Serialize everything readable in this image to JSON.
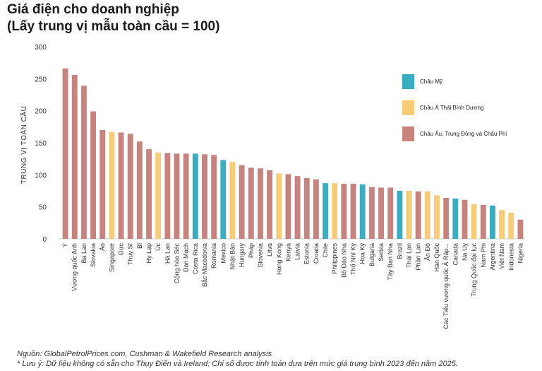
{
  "title_line1": "Giá điện cho doanh nghiệp",
  "title_line2": "(Lấy trung vị mẫu toàn cầu = 100)",
  "source": "Nguồn: GlobalPetrolPrices.com, Cushman & Wakefield Research analysis",
  "note": "* Lưu ý: Dữ liệu không có sẵn cho Thụy Điển và Ireland; Chỉ số được tính toán dựa trên mức giá trung bình 2023 đến năm 2025.",
  "colors": {
    "americas": "#3aaec0",
    "apac": "#f7cc78",
    "emea": "#c7847f",
    "axis": "#cccccc",
    "text": "#333333"
  },
  "chart_data": {
    "type": "bar",
    "ylabel": "TRUNG VỊ TOÀN CẦU",
    "ylim": [
      0,
      300
    ],
    "yticks": [
      0,
      50,
      100,
      150,
      200,
      250,
      300
    ],
    "grid": false,
    "legend_position": "right",
    "legend": [
      {
        "key": "americas",
        "label": "Châu Mỹ"
      },
      {
        "key": "apac",
        "label": "Châu Á Thái Bình Dương"
      },
      {
        "key": "emea",
        "label": "Châu Âu, Trung Đông và Châu Phi"
      }
    ],
    "categories": [
      "Ý",
      "Vương quốc Anh",
      "Ba Lan",
      "Slovakia",
      "Áo",
      "Singapore",
      "Đức",
      "Thụy Sĩ",
      "Bỉ",
      "Hy Lạp",
      "Úc",
      "Hà Lan",
      "Cộng hòa Séc",
      "Đan Mạch",
      "Costa Rica",
      "Bắc Macedonia",
      "Romania",
      "Mexico",
      "Nhật Bản",
      "Hungary",
      "Pháp",
      "Slovenia",
      "Litva",
      "Hong Kong",
      "Kenya",
      "Latvia",
      "Estonia",
      "Croatia",
      "Chile",
      "Philippines",
      "Bồ Đào Nha",
      "Thổ Nhĩ Kỳ",
      "Hoa Kỳ",
      "Bulgaria",
      "Serbia",
      "Tây Ban Nha",
      "Brazil",
      "Thái Lan",
      "Phần Lan",
      "Ấn Độ",
      "Hàn Quốc",
      "Các Tiểu vương quốc Ả Rập...",
      "Canada",
      "Na Uy",
      "Trung Quốc đại lục",
      "Nam Phi",
      "Argentina",
      "Việt Nam",
      "Indonesia",
      "Nigeria"
    ],
    "values": [
      266,
      256,
      239,
      199,
      170,
      167,
      166,
      164,
      152,
      140,
      135,
      134,
      133,
      133,
      133,
      132,
      131,
      123,
      120,
      115,
      111,
      110,
      107,
      102,
      101,
      98,
      95,
      93,
      87,
      87,
      86,
      86,
      85,
      81,
      80,
      80,
      75,
      75,
      74,
      74,
      68,
      64,
      63,
      61,
      54,
      53,
      52,
      45,
      41,
      30
    ],
    "regions": [
      "emea",
      "emea",
      "emea",
      "emea",
      "emea",
      "apac",
      "emea",
      "emea",
      "emea",
      "emea",
      "apac",
      "emea",
      "emea",
      "emea",
      "americas",
      "emea",
      "emea",
      "americas",
      "apac",
      "emea",
      "emea",
      "emea",
      "emea",
      "apac",
      "emea",
      "emea",
      "emea",
      "emea",
      "americas",
      "apac",
      "emea",
      "emea",
      "americas",
      "emea",
      "emea",
      "emea",
      "americas",
      "apac",
      "emea",
      "apac",
      "apac",
      "emea",
      "americas",
      "emea",
      "apac",
      "emea",
      "americas",
      "apac",
      "apac",
      "emea"
    ]
  }
}
